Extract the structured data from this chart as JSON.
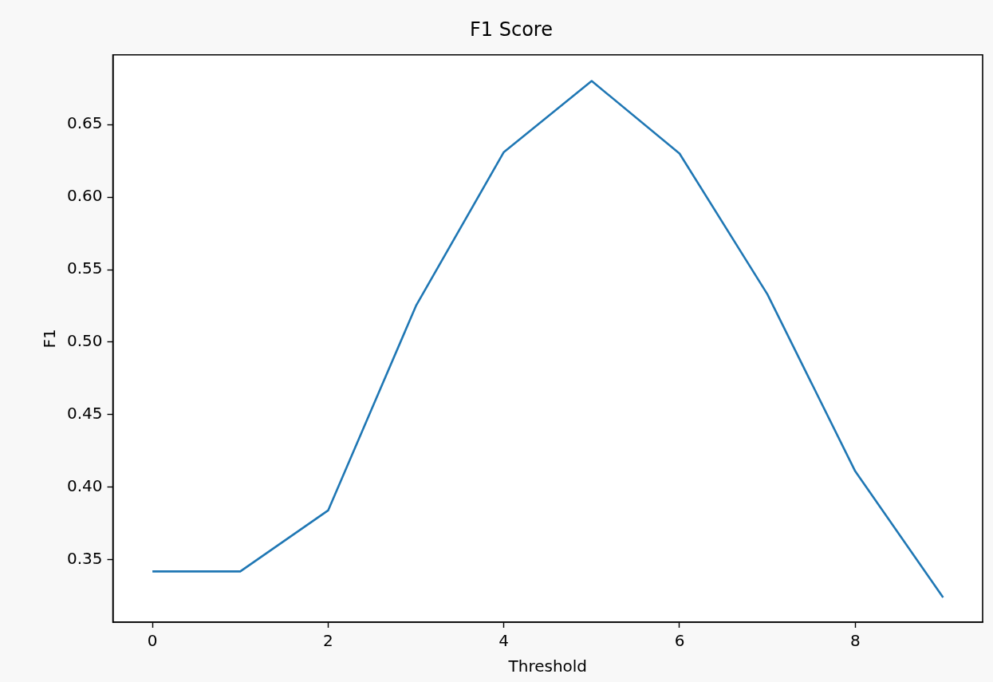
{
  "chart_data": {
    "type": "line",
    "title": "F1 Score",
    "xlabel": "Threshold",
    "ylabel": "F1",
    "x": [
      0,
      1,
      2,
      3,
      4,
      5,
      6,
      7,
      8,
      9
    ],
    "series": [
      {
        "color": "#1f77b4",
        "values": [
          0.342,
          0.342,
          0.384,
          0.525,
          0.631,
          0.68,
          0.63,
          0.533,
          0.411,
          0.324
        ]
      }
    ],
    "xlim": [
      -0.45,
      9.45
    ],
    "xticks": [
      0,
      2,
      4,
      6,
      8
    ],
    "ylim": [
      0.307,
      0.698
    ],
    "yticks": [
      0.35,
      {
        "value": 0.4,
        "label": "0.40"
      },
      0.45,
      {
        "value": 0.5,
        "label": "0.50"
      },
      0.55,
      {
        "value": 0.6,
        "label": "0.60"
      },
      0.65
    ],
    "grid": false,
    "legend": false,
    "marker": "none",
    "line_style": "solid"
  }
}
